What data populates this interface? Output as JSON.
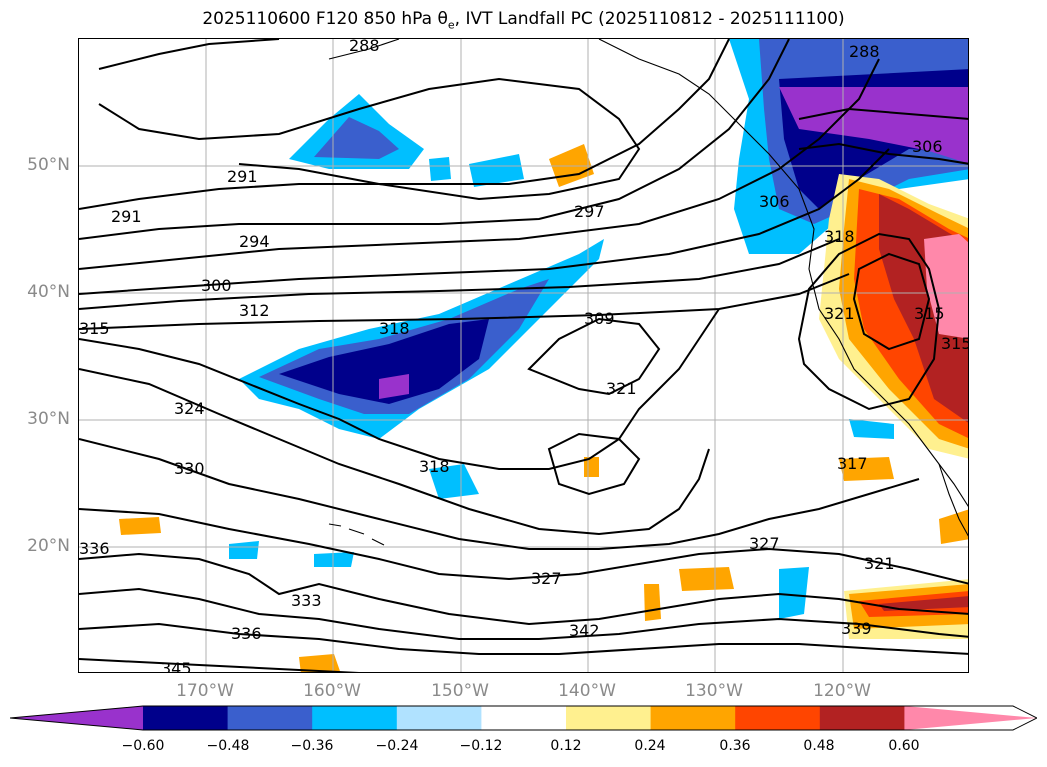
{
  "title": {
    "text": "2025110600 F120 850 hPa θ",
    "sub": "e",
    "rest": ", IVT Landfall PC (2025110812 - 2025111100)"
  },
  "map": {
    "lon_range": [
      -180,
      -110
    ],
    "lat_range": [
      10,
      60
    ],
    "grid": true,
    "lon_ticks": [
      "170°W",
      "160°W",
      "150°W",
      "140°W",
      "130°W",
      "120°W"
    ],
    "lat_ticks": [
      "50°N",
      "40°N",
      "30°N",
      "20°N"
    ]
  },
  "contours": {
    "variable": "850 hPa theta-e",
    "labels": [
      "288",
      "288",
      "291",
      "291",
      "294",
      "297",
      "300",
      "306",
      "306",
      "309",
      "312",
      "315",
      "315",
      "315",
      "317",
      "318",
      "318",
      "318",
      "321",
      "321",
      "321",
      "324",
      "327",
      "327",
      "330",
      "333",
      "336",
      "336",
      "339",
      "342",
      "345"
    ]
  },
  "colorbar": {
    "ticks": [
      "−0.60",
      "−0.48",
      "−0.36",
      "−0.24",
      "−0.12",
      "0.12",
      "0.24",
      "0.36",
      "0.48",
      "0.60"
    ],
    "colors": [
      "#9932cc",
      "#00008b",
      "#3a5fcd",
      "#00bfff",
      "#b0e2ff",
      "#ffffff",
      "#fff08f",
      "#ffa500",
      "#ff4500",
      "#b22222",
      "#ff88aa"
    ],
    "extend": "both"
  }
}
